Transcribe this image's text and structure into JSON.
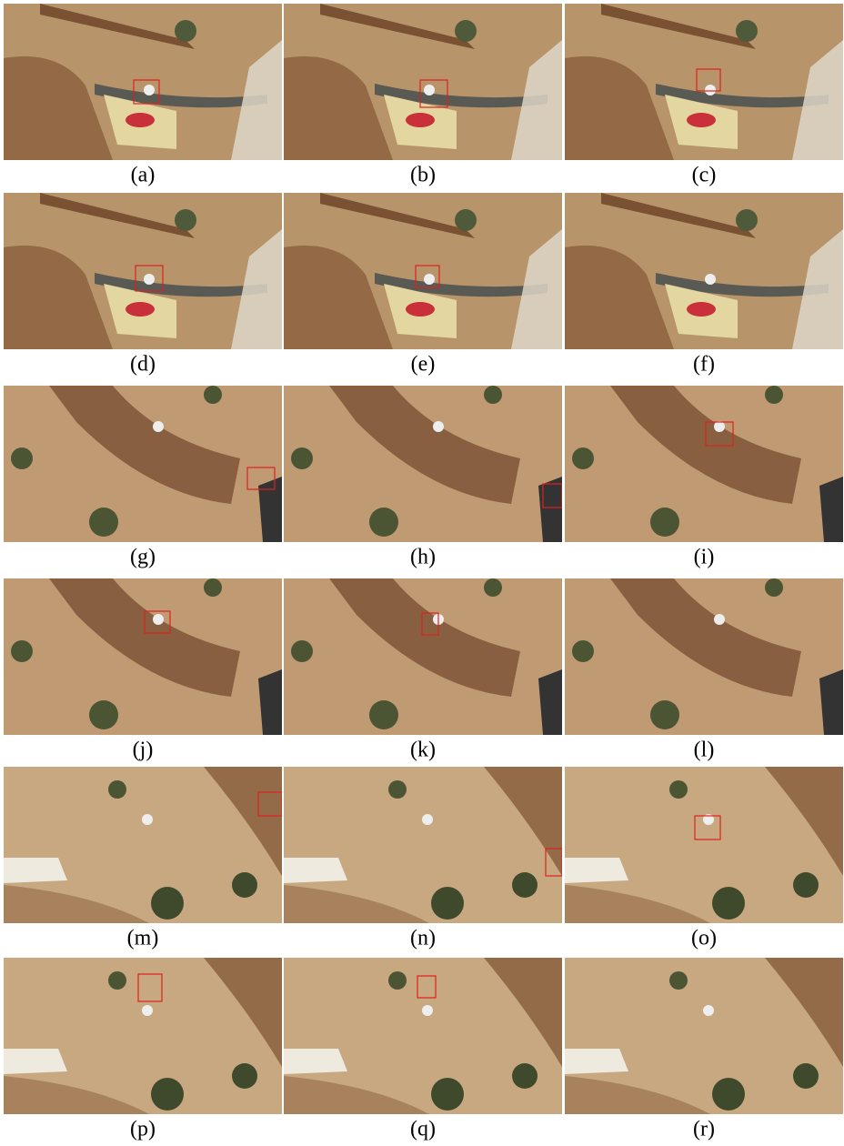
{
  "panels": [
    {
      "caption": "(a)"
    },
    {
      "caption": "(b)"
    },
    {
      "caption": "(c)"
    },
    {
      "caption": "(d)"
    },
    {
      "caption": "(e)"
    },
    {
      "caption": "(f)"
    },
    {
      "caption": "(g)"
    },
    {
      "caption": "(h)"
    },
    {
      "caption": "(i)"
    },
    {
      "caption": "(j)"
    },
    {
      "caption": "(k)"
    },
    {
      "caption": "(l)"
    },
    {
      "caption": "(m)"
    },
    {
      "caption": "(n)"
    },
    {
      "caption": "(o)"
    },
    {
      "caption": "(p)"
    },
    {
      "caption": "(q)"
    },
    {
      "caption": "(r)"
    }
  ]
}
